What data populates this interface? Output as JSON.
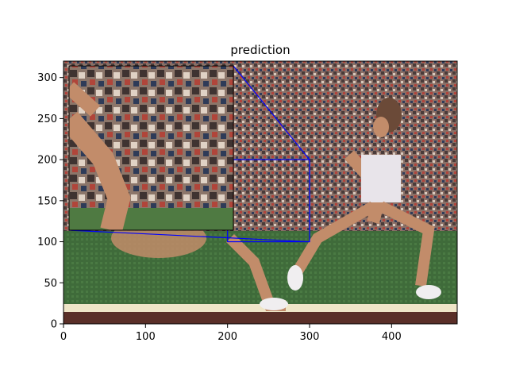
{
  "chart_data": {
    "type": "image",
    "title": "prediction",
    "xlabel": "",
    "ylabel": "",
    "xlim": [
      0,
      480
    ],
    "ylim": [
      0,
      320
    ],
    "xticks": [
      0,
      100,
      200,
      300,
      400
    ],
    "yticks": [
      0,
      50,
      100,
      150,
      200,
      250,
      300
    ],
    "image_description": "Pixelated photo of a sprinter running on a green track with a blurred stadium crowd behind",
    "zoom_region": {
      "xlim": [
        200,
        300
      ],
      "ylim": [
        100,
        200
      ],
      "color": "#0000ff"
    },
    "inset_location": "upper-left"
  },
  "colors": {
    "grass": "#3f6b3a",
    "crowd_dark": "#4a3b3a",
    "crowd_light": "#b8a59a",
    "skin": "#c28c6a",
    "connector": "#0000ff"
  }
}
